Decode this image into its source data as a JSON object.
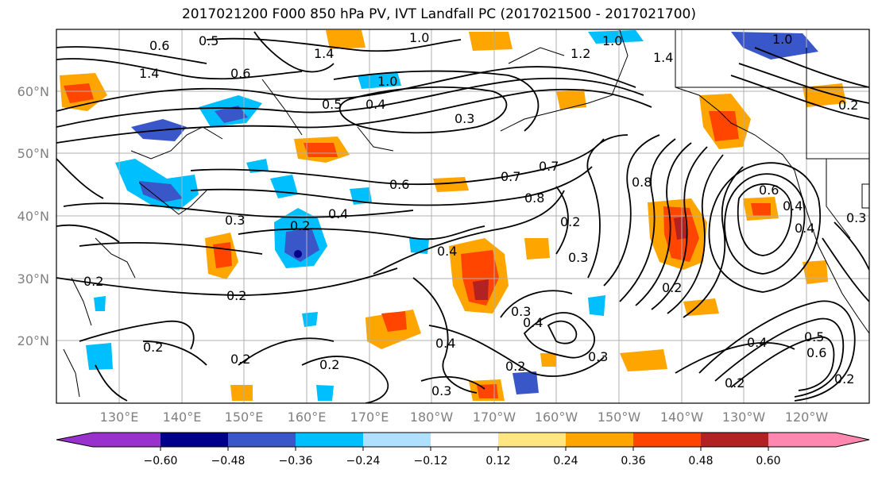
{
  "title": "2017021200 F000 850 hPa PV, IVT Landfall PC (2017021500 - 2017021700)",
  "lat_labels": [
    "60°N",
    "50°N",
    "40°N",
    "30°N",
    "20°N"
  ],
  "lon_labels": [
    "130°E",
    "140°E",
    "150°E",
    "160°E",
    "170°E",
    "180°W",
    "170°W",
    "160°W",
    "150°W",
    "140°W",
    "130°W",
    "120°W"
  ],
  "colorbar": {
    "tick_labels": [
      "−0.60",
      "−0.48",
      "−0.36",
      "−0.24",
      "−0.12",
      "0.12",
      "0.24",
      "0.36",
      "0.48",
      "0.60"
    ],
    "colors": [
      "#9932cc",
      "#00008b",
      "#3a57c9",
      "#00bfff",
      "#b0e0ff",
      "#ffffff",
      "#ffe680",
      "#ffa500",
      "#ff4500",
      "#b22222",
      "#ff88b0"
    ]
  },
  "contour_labels": [
    "0.6",
    "0.5",
    "1.0",
    "1.0",
    "1.0",
    "1.4",
    "1.4",
    "1.4",
    "1.2",
    "1.0",
    "0.6",
    "0.4",
    "0.3",
    "0.5",
    "0.4",
    "0.6",
    "0.7",
    "0.7",
    "0.8",
    "0.4",
    "0.3",
    "0.2",
    "0.3",
    "0.2",
    "0.4",
    "0.2",
    "0.3",
    "0.6",
    "0.4",
    "0.2",
    "0.2",
    "0.2",
    "0.2",
    "0.2",
    "0.3",
    "0.3",
    "0.4",
    "0.2",
    "0.4",
    "0.5",
    "0.6",
    "0.2",
    "0.2",
    "0.2",
    "0.4",
    "0.8",
    "0.3"
  ]
}
